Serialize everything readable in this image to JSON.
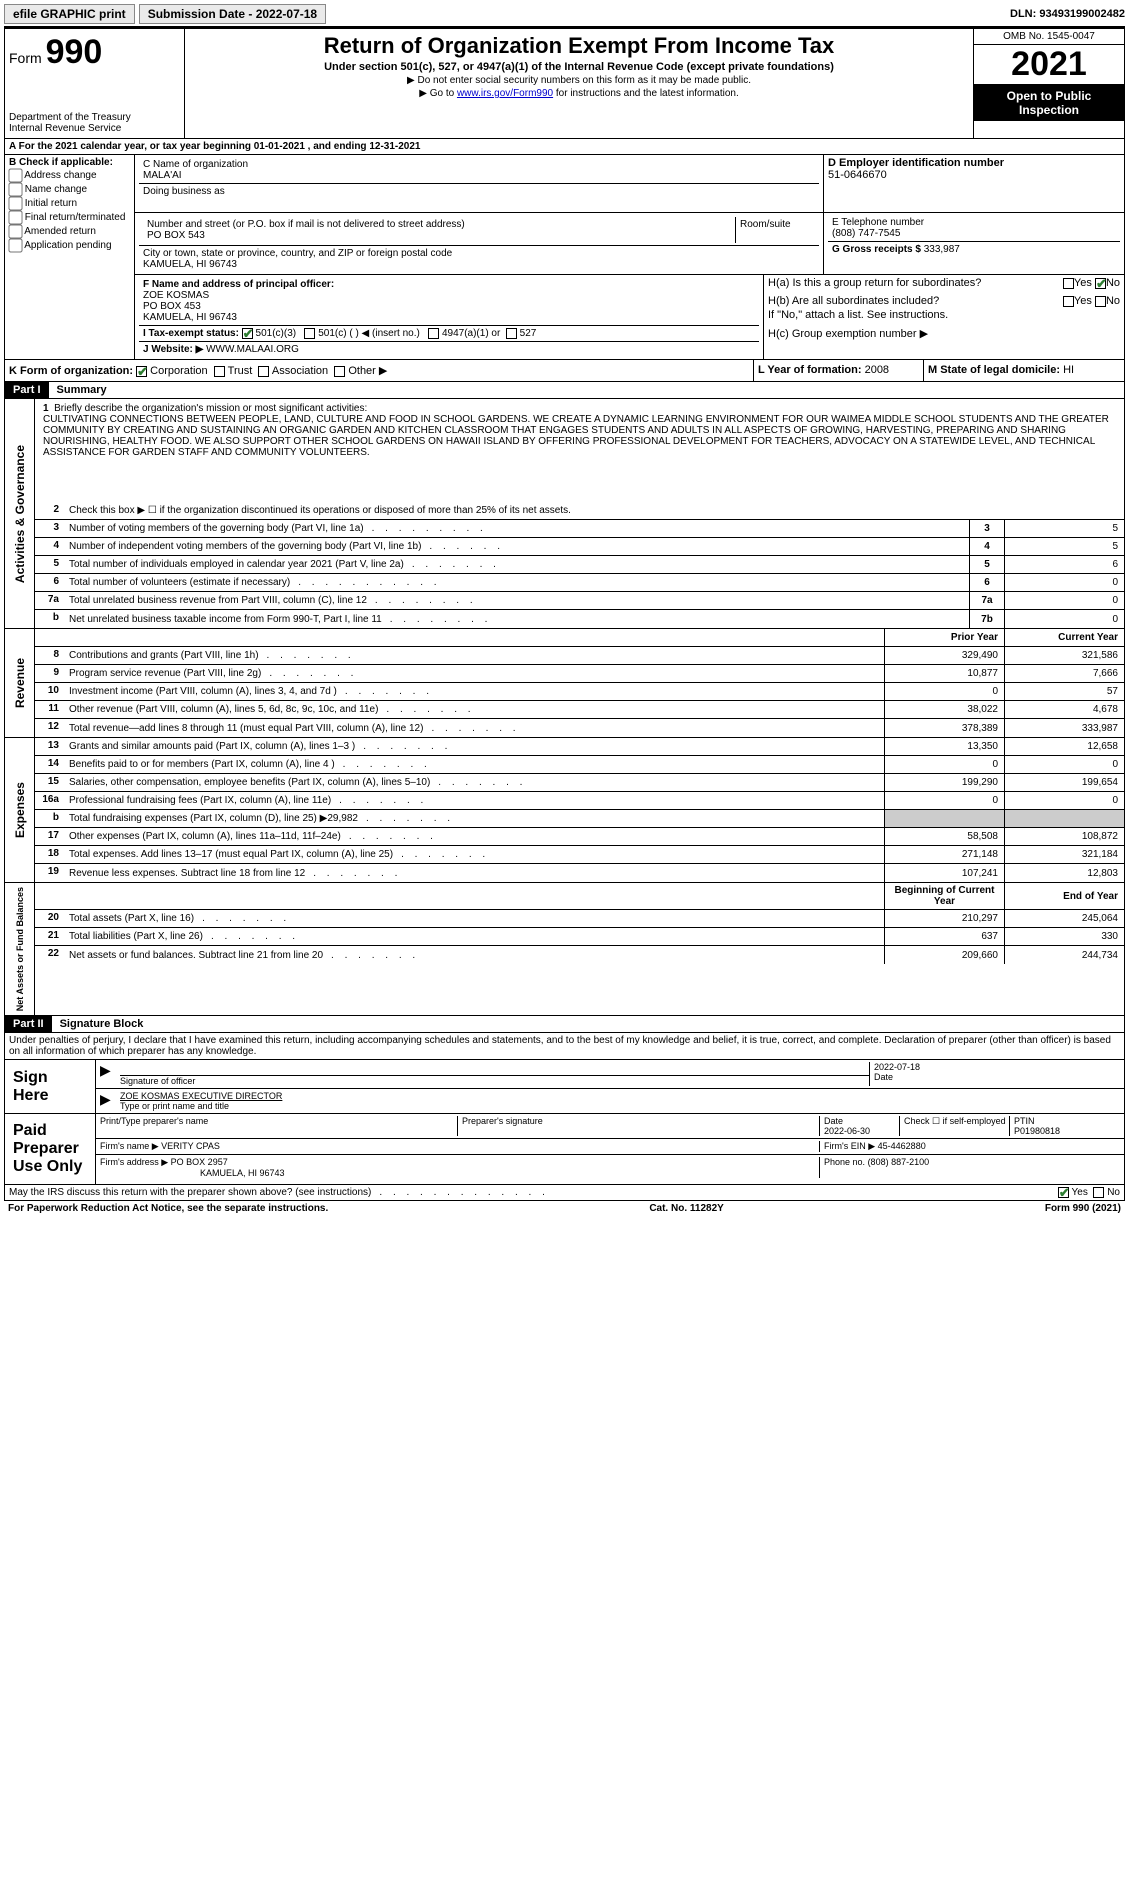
{
  "topbar": {
    "efile": "efile GRAPHIC print",
    "submission_label": "Submission Date - 2022-07-18",
    "dln": "DLN: 93493199002482"
  },
  "header": {
    "form_label": "Form",
    "form_num": "990",
    "dept": "Department of the Treasury",
    "irs": "Internal Revenue Service",
    "title": "Return of Organization Exempt From Income Tax",
    "sub1": "Under section 501(c), 527, or 4947(a)(1) of the Internal Revenue Code (except private foundations)",
    "sub2a": "▶ Do not enter social security numbers on this form as it may be made public.",
    "sub2b_pre": "▶ Go to ",
    "sub2b_link": "www.irs.gov/Form990",
    "sub2b_post": " for instructions and the latest information.",
    "omb": "OMB No. 1545-0047",
    "year": "2021",
    "inspection": "Open to Public Inspection"
  },
  "row_a": "A For the 2021 calendar year, or tax year beginning 01-01-2021   , and ending 12-31-2021",
  "section_b": {
    "label": "B Check if applicable:",
    "opts": [
      "Address change",
      "Name change",
      "Initial return",
      "Final return/terminated",
      "Amended return",
      "Application pending"
    ]
  },
  "section_c": {
    "name_label": "C Name of organization",
    "name": "MALA'AI",
    "dba_label": "Doing business as",
    "dba": "",
    "addr_label": "Number and street (or P.O. box if mail is not delivered to street address)",
    "room_label": "Room/suite",
    "addr": "PO BOX 543",
    "city_label": "City or town, state or province, country, and ZIP or foreign postal code",
    "city": "KAMUELA, HI  96743"
  },
  "section_d": {
    "label": "D Employer identification number",
    "value": "51-0646670"
  },
  "section_e": {
    "label": "E Telephone number",
    "value": "(808) 747-7545"
  },
  "section_g": {
    "label": "G Gross receipts $",
    "value": "333,987"
  },
  "section_f": {
    "label": "F Name and address of principal officer:",
    "name": "ZOE KOSMAS",
    "addr1": "PO BOX 453",
    "addr2": "KAMUELA, HI  96743"
  },
  "section_h": {
    "a": "H(a)  Is this a group return for subordinates?",
    "b": "H(b)  Are all subordinates included?",
    "b_note": "If \"No,\" attach a list. See instructions.",
    "c": "H(c)  Group exemption number ▶",
    "yes": "Yes",
    "no": "No"
  },
  "row_i": {
    "label": "I   Tax-exempt status:",
    "o1": "501(c)(3)",
    "o2": "501(c) (  ) ◀ (insert no.)",
    "o3": "4947(a)(1) or",
    "o4": "527"
  },
  "row_j": {
    "label": "J   Website: ▶",
    "value": "WWW.MALAAI.ORG"
  },
  "row_k": {
    "label": "K Form of organization:",
    "o1": "Corporation",
    "o2": "Trust",
    "o3": "Association",
    "o4": "Other ▶"
  },
  "row_l": {
    "label": "L Year of formation:",
    "value": "2008"
  },
  "row_m": {
    "label": "M State of legal domicile:",
    "value": "HI"
  },
  "parts": {
    "p1": "Part I",
    "p1_title": "Summary",
    "p2": "Part II",
    "p2_title": "Signature Block"
  },
  "sections": {
    "gov": "Activities & Governance",
    "rev": "Revenue",
    "exp": "Expenses",
    "net": "Net Assets or Fund Balances"
  },
  "mission_label": "Briefly describe the organization's mission or most significant activities:",
  "mission": "CULTIVATING CONNECTIONS BETWEEN PEOPLE, LAND, CULTURE AND FOOD IN SCHOOL GARDENS. WE CREATE A DYNAMIC LEARNING ENVIRONMENT FOR OUR WAIMEA MIDDLE SCHOOL STUDENTS AND THE GREATER COMMUNITY BY CREATING AND SUSTAINING AN ORGANIC GARDEN AND KITCHEN CLASSROOM THAT ENGAGES STUDENTS AND ADULTS IN ALL ASPECTS OF GROWING, HARVESTING, PREPARING AND SHARING NOURISHING, HEALTHY FOOD. WE ALSO SUPPORT OTHER SCHOOL GARDENS ON HAWAII ISLAND BY OFFERING PROFESSIONAL DEVELOPMENT FOR TEACHERS, ADVOCACY ON A STATEWIDE LEVEL, AND TECHNICAL ASSISTANCE FOR GARDEN STAFF AND COMMUNITY VOLUNTEERS.",
  "gov_lines": {
    "l2": "Check this box ▶ ☐ if the organization discontinued its operations or disposed of more than 25% of its net assets.",
    "l3": {
      "desc": "Number of voting members of the governing body (Part VI, line 1a)",
      "box": "3",
      "val": "5"
    },
    "l4": {
      "desc": "Number of independent voting members of the governing body (Part VI, line 1b)",
      "box": "4",
      "val": "5"
    },
    "l5": {
      "desc": "Total number of individuals employed in calendar year 2021 (Part V, line 2a)",
      "box": "5",
      "val": "6"
    },
    "l6": {
      "desc": "Total number of volunteers (estimate if necessary)",
      "box": "6",
      "val": "0"
    },
    "l7a": {
      "desc": "Total unrelated business revenue from Part VIII, column (C), line 12",
      "box": "7a",
      "val": "0"
    },
    "l7b": {
      "desc": "Net unrelated business taxable income from Form 990-T, Part I, line 11",
      "box": "7b",
      "val": "0"
    }
  },
  "col_headers": {
    "prior": "Prior Year",
    "current": "Current Year",
    "begin": "Beginning of Current Year",
    "end": "End of Year"
  },
  "rev_lines": [
    {
      "n": "8",
      "desc": "Contributions and grants (Part VIII, line 1h)",
      "py": "329,490",
      "cy": "321,586"
    },
    {
      "n": "9",
      "desc": "Program service revenue (Part VIII, line 2g)",
      "py": "10,877",
      "cy": "7,666"
    },
    {
      "n": "10",
      "desc": "Investment income (Part VIII, column (A), lines 3, 4, and 7d )",
      "py": "0",
      "cy": "57"
    },
    {
      "n": "11",
      "desc": "Other revenue (Part VIII, column (A), lines 5, 6d, 8c, 9c, 10c, and 11e)",
      "py": "38,022",
      "cy": "4,678"
    },
    {
      "n": "12",
      "desc": "Total revenue—add lines 8 through 11 (must equal Part VIII, column (A), line 12)",
      "py": "378,389",
      "cy": "333,987"
    }
  ],
  "exp_lines": [
    {
      "n": "13",
      "desc": "Grants and similar amounts paid (Part IX, column (A), lines 1–3 )",
      "py": "13,350",
      "cy": "12,658"
    },
    {
      "n": "14",
      "desc": "Benefits paid to or for members (Part IX, column (A), line 4 )",
      "py": "0",
      "cy": "0"
    },
    {
      "n": "15",
      "desc": "Salaries, other compensation, employee benefits (Part IX, column (A), lines 5–10)",
      "py": "199,290",
      "cy": "199,654"
    },
    {
      "n": "16a",
      "desc": "Professional fundraising fees (Part IX, column (A), line 11e)",
      "py": "0",
      "cy": "0"
    },
    {
      "n": "b",
      "desc": "Total fundraising expenses (Part IX, column (D), line 25) ▶29,982",
      "py": "",
      "cy": "",
      "grey": true
    },
    {
      "n": "17",
      "desc": "Other expenses (Part IX, column (A), lines 11a–11d, 11f–24e)",
      "py": "58,508",
      "cy": "108,872"
    },
    {
      "n": "18",
      "desc": "Total expenses. Add lines 13–17 (must equal Part IX, column (A), line 25)",
      "py": "271,148",
      "cy": "321,184"
    },
    {
      "n": "19",
      "desc": "Revenue less expenses. Subtract line 18 from line 12",
      "py": "107,241",
      "cy": "12,803"
    }
  ],
  "net_lines": [
    {
      "n": "20",
      "desc": "Total assets (Part X, line 16)",
      "py": "210,297",
      "cy": "245,064"
    },
    {
      "n": "21",
      "desc": "Total liabilities (Part X, line 26)",
      "py": "637",
      "cy": "330"
    },
    {
      "n": "22",
      "desc": "Net assets or fund balances. Subtract line 21 from line 20",
      "py": "209,660",
      "cy": "244,734"
    }
  ],
  "sig_penalty": "Under penalties of perjury, I declare that I have examined this return, including accompanying schedules and statements, and to the best of my knowledge and belief, it is true, correct, and complete. Declaration of preparer (other than officer) is based on all information of which preparer has any knowledge.",
  "sign_here": "Sign Here",
  "sig": {
    "officer_label": "Signature of officer",
    "date_label": "Date",
    "date": "2022-07-18",
    "name": "ZOE KOSMAS  EXECUTIVE DIRECTOR",
    "name_label": "Type or print name and title"
  },
  "paid": {
    "label": "Paid Preparer Use Only",
    "c1": "Print/Type preparer's name",
    "c2": "Preparer's signature",
    "c3": "Date",
    "c3v": "2022-06-30",
    "c4": "Check ☐ if self-employed",
    "c5": "PTIN",
    "c5v": "P01980818",
    "firm_name_l": "Firm's name    ▶",
    "firm_name": "VERITY CPAS",
    "firm_ein_l": "Firm's EIN ▶",
    "firm_ein": "45-4462880",
    "firm_addr_l": "Firm's address ▶",
    "firm_addr": "PO BOX 2957",
    "firm_city": "KAMUELA, HI  96743",
    "phone_l": "Phone no.",
    "phone": "(808) 887-2100"
  },
  "discuss": "May the IRS discuss this return with the preparer shown above? (see instructions)",
  "footer": {
    "left": "For Paperwork Reduction Act Notice, see the separate instructions.",
    "mid": "Cat. No. 11282Y",
    "right": "Form 990 (2021)"
  }
}
